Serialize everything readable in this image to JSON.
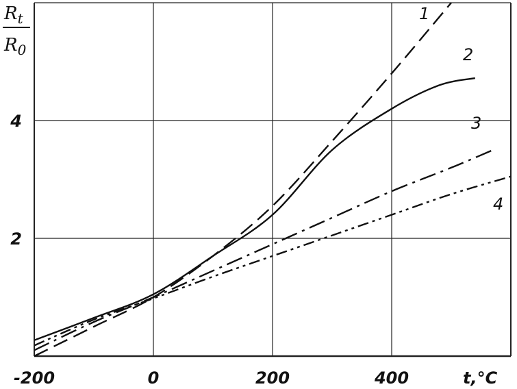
{
  "chart_data": {
    "type": "line",
    "title": "",
    "xlabel": "t,°C",
    "ylabel_numerator": "Rt",
    "ylabel_numerator_main": "R",
    "ylabel_numerator_sub": "t",
    "ylabel_denominator_main": "R",
    "ylabel_denominator_sub": "0",
    "xlim": [
      -200,
      600
    ],
    "ylim": [
      0,
      6
    ],
    "grid": true,
    "x_ticks": [
      {
        "value": -200,
        "label": "-200"
      },
      {
        "value": 0,
        "label": "0"
      },
      {
        "value": 200,
        "label": "200"
      },
      {
        "value": 400,
        "label": "400"
      }
    ],
    "y_ticks": [
      {
        "value": 2,
        "label": "2"
      },
      {
        "value": 4,
        "label": "4"
      }
    ],
    "series": [
      {
        "name": "1",
        "style": "dashed",
        "points": [
          [
            -200,
            0.0
          ],
          [
            -100,
            0.5
          ],
          [
            0,
            1.0
          ],
          [
            100,
            1.7
          ],
          [
            200,
            2.55
          ],
          [
            300,
            3.65
          ],
          [
            400,
            4.8
          ],
          [
            500,
            6.0
          ]
        ]
      },
      {
        "name": "2",
        "style": "solid",
        "points": [
          [
            -200,
            0.27
          ],
          [
            -100,
            0.65
          ],
          [
            0,
            1.05
          ],
          [
            100,
            1.7
          ],
          [
            200,
            2.4
          ],
          [
            300,
            3.5
          ],
          [
            400,
            4.2
          ],
          [
            480,
            4.6
          ],
          [
            540,
            4.72
          ]
        ]
      },
      {
        "name": "3",
        "style": "dashdot",
        "points": [
          [
            -200,
            0.1
          ],
          [
            -100,
            0.58
          ],
          [
            0,
            1.0
          ],
          [
            100,
            1.45
          ],
          [
            200,
            1.9
          ],
          [
            300,
            2.35
          ],
          [
            400,
            2.8
          ],
          [
            500,
            3.2
          ],
          [
            570,
            3.5
          ]
        ]
      },
      {
        "name": "4",
        "style": "dashdotdot",
        "points": [
          [
            -200,
            0.18
          ],
          [
            -100,
            0.62
          ],
          [
            0,
            0.98
          ],
          [
            100,
            1.35
          ],
          [
            200,
            1.7
          ],
          [
            300,
            2.05
          ],
          [
            400,
            2.4
          ],
          [
            500,
            2.75
          ],
          [
            600,
            3.05
          ]
        ]
      }
    ]
  }
}
